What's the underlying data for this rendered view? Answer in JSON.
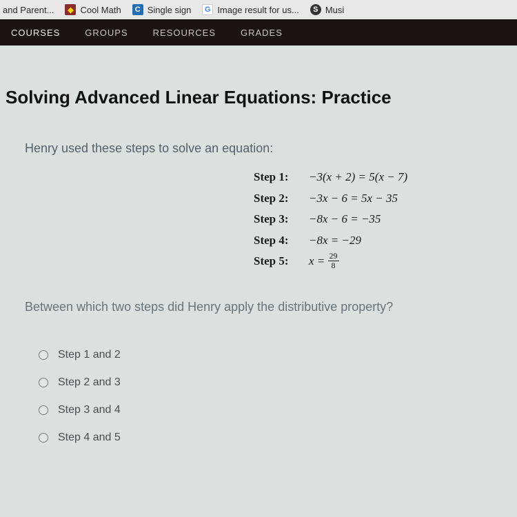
{
  "browser": {
    "tabs": [
      {
        "icon": "",
        "label": "and Parent..."
      },
      {
        "icon": "diamond",
        "label": "Cool Math"
      },
      {
        "icon": "c",
        "label": "Single sign"
      },
      {
        "icon": "g",
        "label": "Image result for us..."
      },
      {
        "icon": "s",
        "label": "Musi"
      }
    ]
  },
  "nav": {
    "items": [
      "COURSES",
      "GROUPS",
      "RESOURCES",
      "GRADES"
    ],
    "active_index": 0
  },
  "page": {
    "title": "Solving Advanced Linear Equations: Practice",
    "problem_intro": "Henry used these steps to solve an equation:",
    "steps": [
      {
        "label": "Step 1:",
        "eq": "−3(x + 2) = 5(x − 7)"
      },
      {
        "label": "Step 2:",
        "eq": "−3x − 6 = 5x − 35"
      },
      {
        "label": "Step 3:",
        "eq": "−8x − 6 = −35"
      },
      {
        "label": "Step 4:",
        "eq": "−8x = −29"
      },
      {
        "label": "Step 5:",
        "eq_html": true,
        "prefix": "x = ",
        "num": "29",
        "den": "8"
      }
    ],
    "question": "Between which two steps did Henry apply the distributive property?",
    "options": [
      "Step 1 and 2",
      "Step 2 and 3",
      "Step 3 and 4",
      "Step 4 and 5"
    ]
  },
  "colors": {
    "background": "#dce0de",
    "navbar_bg": "#1a1414",
    "nav_text": "#c8c4c2",
    "title": "#111111",
    "subtext": "#556068"
  }
}
